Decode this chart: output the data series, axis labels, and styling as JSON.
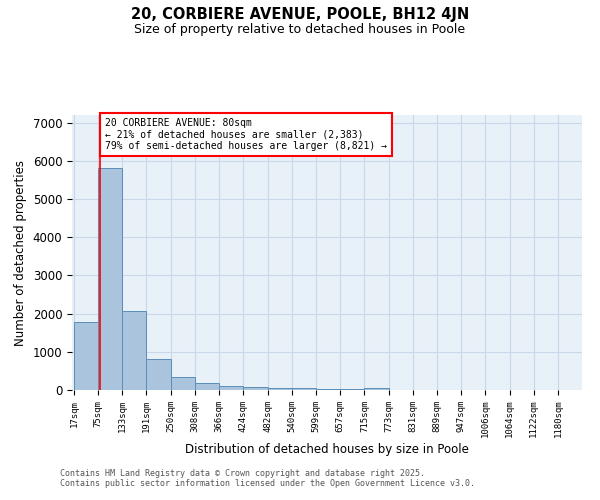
{
  "title1": "20, CORBIERE AVENUE, POOLE, BH12 4JN",
  "title2": "Size of property relative to detached houses in Poole",
  "xlabel": "Distribution of detached houses by size in Poole",
  "ylabel": "Number of detached properties",
  "bar_values": [
    1780,
    5800,
    2080,
    820,
    330,
    185,
    110,
    75,
    55,
    40,
    30,
    20,
    60,
    5,
    5,
    5,
    3,
    3,
    2,
    2,
    2
  ],
  "bin_edges": [
    17,
    75,
    133,
    191,
    250,
    308,
    366,
    424,
    482,
    540,
    599,
    657,
    715,
    773,
    831,
    889,
    947,
    1006,
    1064,
    1122,
    1180,
    1238
  ],
  "tick_labels": [
    "17sqm",
    "75sqm",
    "133sqm",
    "191sqm",
    "250sqm",
    "308sqm",
    "366sqm",
    "424sqm",
    "482sqm",
    "540sqm",
    "599sqm",
    "657sqm",
    "715sqm",
    "773sqm",
    "831sqm",
    "889sqm",
    "947sqm",
    "1006sqm",
    "1064sqm",
    "1122sqm",
    "1180sqm"
  ],
  "bar_color": "#aac4de",
  "bar_edge_color": "#5b8db8",
  "red_line_x": 80,
  "annotation_line1": "20 CORBIERE AVENUE: 80sqm",
  "annotation_line2": "← 21% of detached houses are smaller (2,383)",
  "annotation_line3": "79% of semi-detached houses are larger (8,821) →",
  "ylim": [
    0,
    7200
  ],
  "grid_color": "#c8d8e8",
  "bg_color": "#e8f0f8",
  "footer1": "Contains HM Land Registry data © Crown copyright and database right 2025.",
  "footer2": "Contains public sector information licensed under the Open Government Licence v3.0."
}
